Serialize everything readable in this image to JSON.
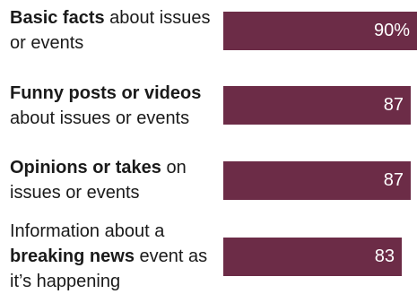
{
  "chart_data": {
    "type": "bar",
    "orientation": "horizontal",
    "categories": [
      [
        {
          "text": "Basic facts",
          "bold": true
        },
        {
          "text": " about issues or events",
          "bold": false
        }
      ],
      [
        {
          "text": "Funny posts or videos",
          "bold": true
        },
        {
          "text": " about issues or events",
          "bold": false
        }
      ],
      [
        {
          "text": "Opinions or takes",
          "bold": true
        },
        {
          "text": " on issues or events",
          "bold": false
        }
      ],
      [
        {
          "text": "Information about a ",
          "bold": false
        },
        {
          "text": "breaking news",
          "bold": true
        },
        {
          "text": " event as it’s happening",
          "bold": false
        }
      ]
    ],
    "values": [
      90,
      87,
      87,
      83
    ],
    "value_labels": [
      "90%",
      "87",
      "87",
      "83"
    ],
    "xlim": [
      0,
      100
    ],
    "bar_color": "#6c2c47",
    "grid": false,
    "legend": "none"
  }
}
